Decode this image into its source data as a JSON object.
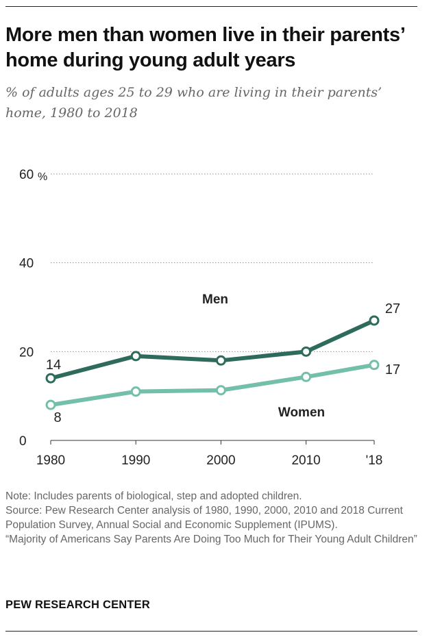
{
  "title": "More men than women live in their parents’ home during young adult years",
  "subtitle": "% of adults ages 25 to 29 who are living in their parents’ home, 1980 to 2018",
  "notes": {
    "note": "Note: Includes parents of biological, step and adopted children.",
    "source": "Source: Pew Research Center analysis of 1980, 1990, 2000, 2010 and 2018 Current Population Survey, Annual Social and Economic Supplement (IPUMS).",
    "report": "“Majority of Americans Say Parents Are Doing Too Much for Their Young Adult Children”"
  },
  "footer": "PEW RESEARCH CENTER",
  "chart_data": {
    "type": "line",
    "title": "More men than women live in their parents’ home during young adult years",
    "subtitle": "% of adults ages 25 to 29 who are living in their parents’ home, 1980 to 2018",
    "xlabel": "",
    "ylabel": "",
    "x": [
      1980,
      1990,
      2000,
      2010,
      2018
    ],
    "x_tick_labels": [
      "1980",
      "1990",
      "2000",
      "2010",
      "'18"
    ],
    "y_ticks": [
      0,
      20,
      40,
      60
    ],
    "y_tick_labels": [
      "0",
      "20",
      "40",
      "60"
    ],
    "y_unit_label": "%",
    "ylim": [
      0,
      60
    ],
    "xlim": [
      1980,
      2018
    ],
    "grid": "horizontal dotted",
    "legend": "direct labels on lines",
    "series": [
      {
        "name": "Men",
        "color": "#2e6b5c",
        "values": [
          14,
          19,
          18,
          20,
          27
        ],
        "labeled_values": [
          {
            "x": 1980,
            "label": "14"
          },
          {
            "x": 2018,
            "label": "27"
          }
        ]
      },
      {
        "name": "Women",
        "color": "#74bfa9",
        "values": [
          8,
          11,
          11.3,
          14.3,
          17
        ],
        "labeled_values": [
          {
            "x": 1980,
            "label": "8"
          },
          {
            "x": 2018,
            "label": "17"
          }
        ]
      }
    ]
  }
}
